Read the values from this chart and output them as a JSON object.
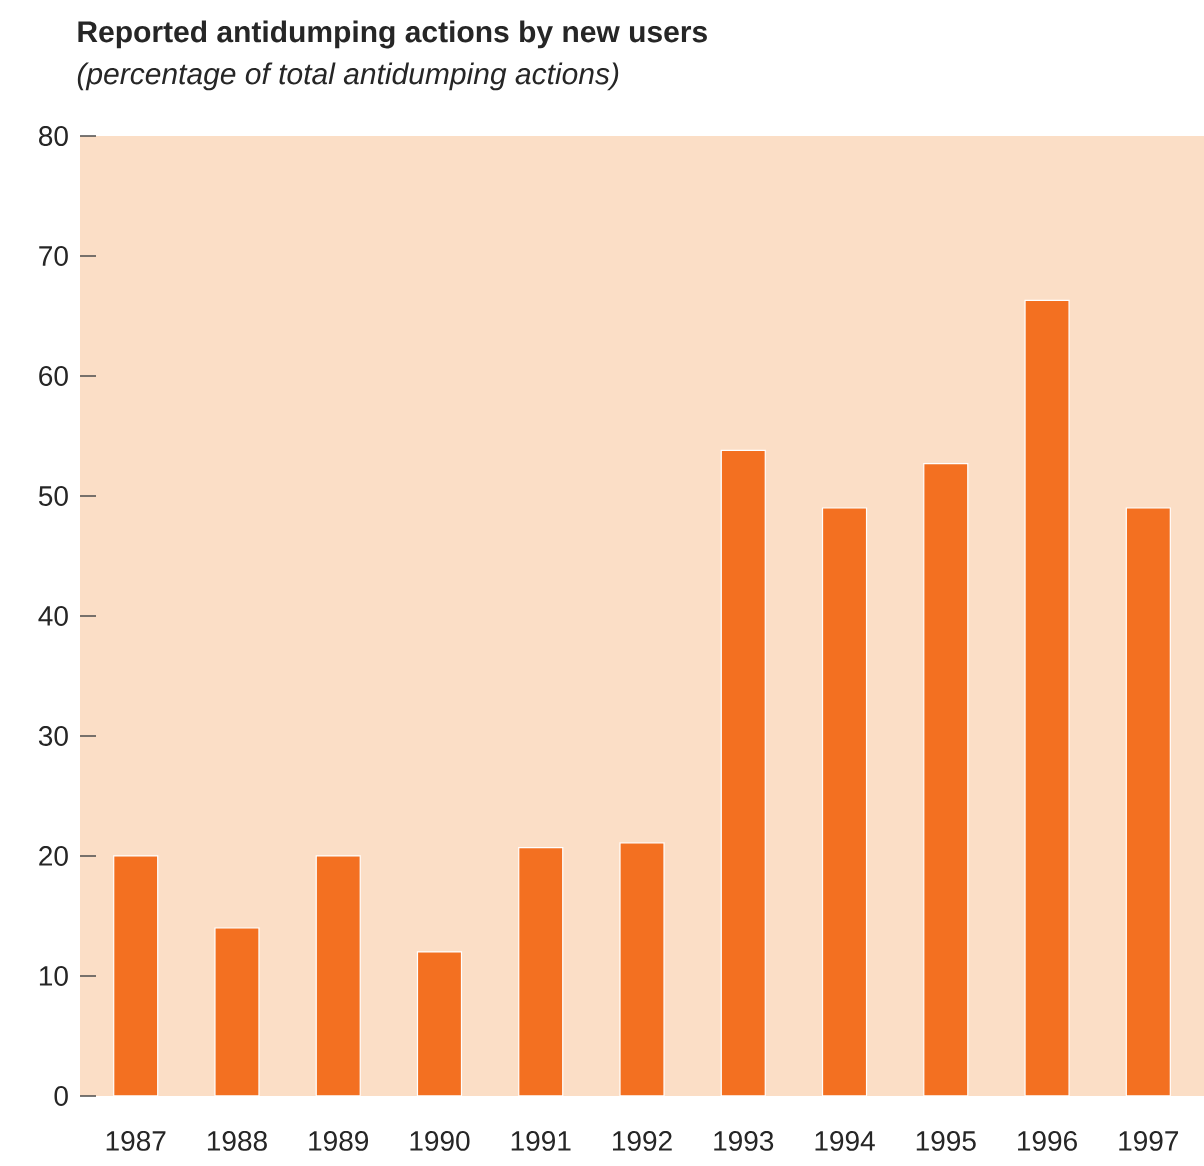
{
  "chart_data": {
    "type": "bar",
    "title": "Reported antidumping actions by new users",
    "subtitle": "(percentage of total antidumping actions)",
    "categories": [
      "1987",
      "1988",
      "1989",
      "1990",
      "1991",
      "1992",
      "1993",
      "1994",
      "1995",
      "1996",
      "1997"
    ],
    "values": [
      20,
      14,
      20,
      12,
      20.7,
      21.1,
      53.8,
      49,
      52.7,
      66.3,
      49
    ],
    "color": "#f37021",
    "ylim": [
      0,
      80
    ],
    "yticks": [
      0,
      10,
      20,
      30,
      40,
      50,
      60,
      70,
      80
    ],
    "grid": false
  }
}
